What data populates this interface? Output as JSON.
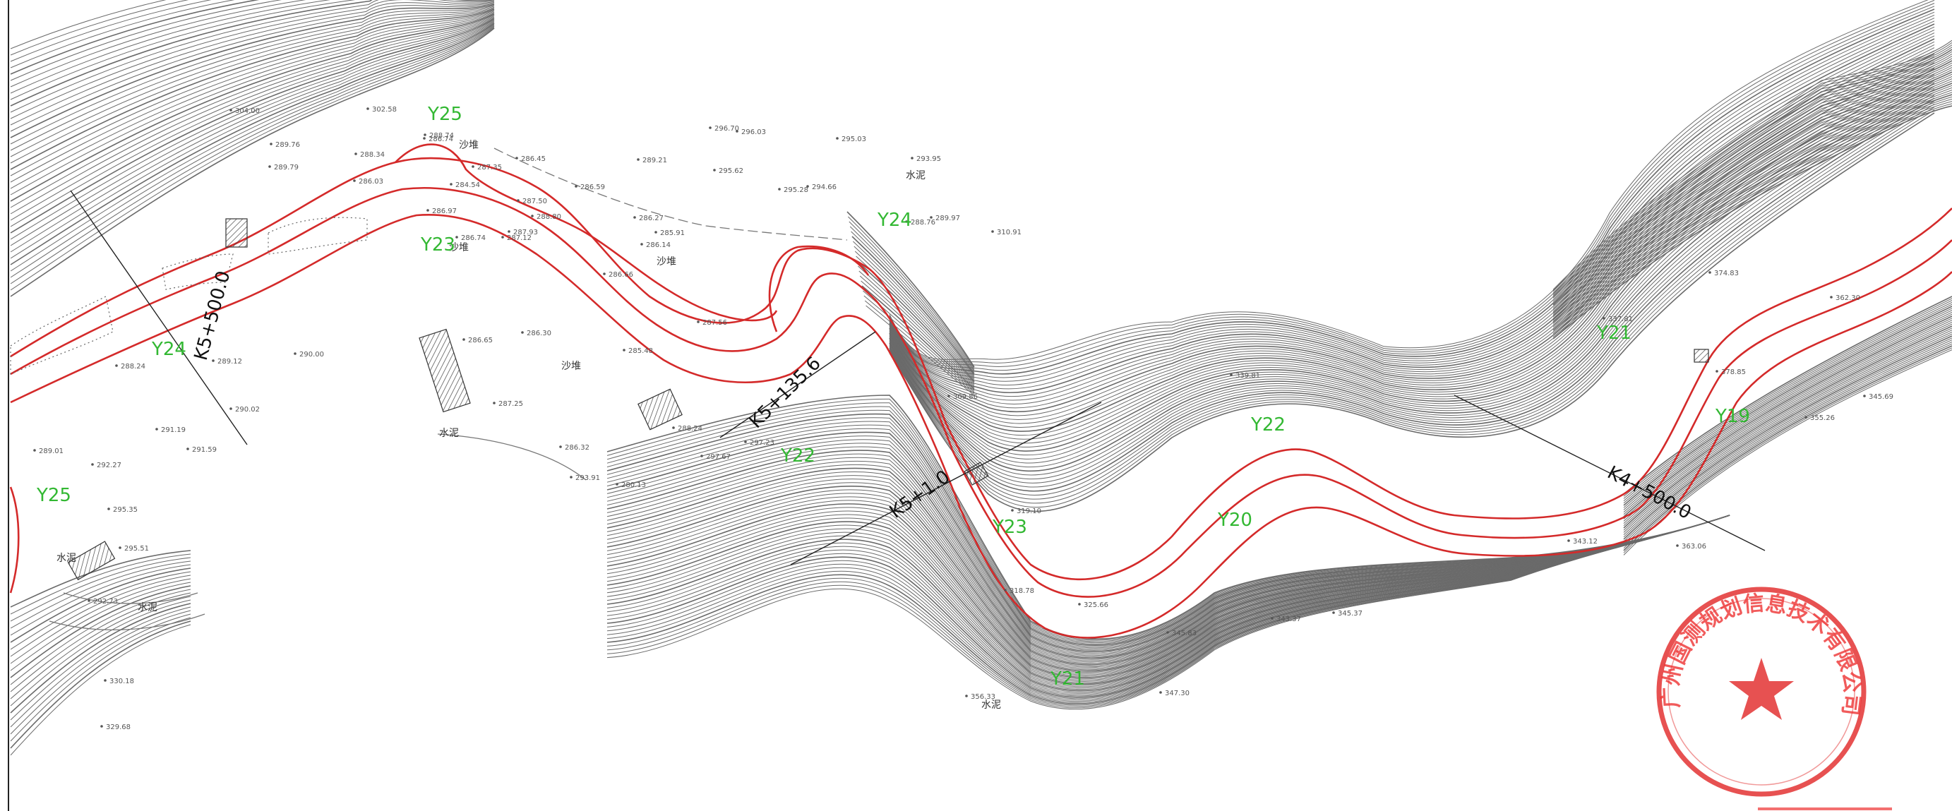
{
  "map": {
    "section_labels": [
      {
        "id": "Y25a",
        "text": "Y25"
      },
      {
        "id": "Y23",
        "text": "Y23"
      },
      {
        "id": "Y24a",
        "text": "Y24"
      },
      {
        "id": "Y25b",
        "text": "Y25"
      },
      {
        "id": "Y24b",
        "text": "Y24"
      },
      {
        "id": "Y22a",
        "text": "Y22"
      },
      {
        "id": "Y22b",
        "text": "Y22"
      },
      {
        "id": "Y23b",
        "text": "Y23"
      },
      {
        "id": "Y20",
        "text": "Y20"
      },
      {
        "id": "Y21a",
        "text": "Y21"
      },
      {
        "id": "Y21b",
        "text": "Y21"
      },
      {
        "id": "Y19",
        "text": "Y19"
      }
    ],
    "chainages": [
      {
        "id": "k5500",
        "text": "K5+500.0"
      },
      {
        "id": "k51356",
        "text": "K5+135.6"
      },
      {
        "id": "k510",
        "text": "K5+1.0"
      },
      {
        "id": "k45000",
        "text": "K4+500.0"
      }
    ],
    "place_labels": [
      {
        "id": "sand1",
        "text": "沙堆"
      },
      {
        "id": "sand2",
        "text": "沙堆"
      },
      {
        "id": "sand3",
        "text": "沙堆"
      },
      {
        "id": "sand4",
        "text": "沙堆"
      },
      {
        "id": "cement1",
        "text": "水泥"
      },
      {
        "id": "cement2",
        "text": "水泥"
      },
      {
        "id": "cement3",
        "text": "水泥"
      },
      {
        "id": "cement4",
        "text": "水泥"
      },
      {
        "id": "cement5",
        "text": "水泥"
      }
    ],
    "elevations": [
      "304.00",
      "302.58",
      "288.74",
      "288.34",
      "289.79",
      "289.76",
      "286.74",
      "286.45",
      "287.35",
      "286.03",
      "284.54",
      "287.50",
      "286.97",
      "287.12",
      "286.74",
      "287.93",
      "288.80",
      "286.59",
      "296.70",
      "296.03",
      "295.03",
      "293.95",
      "295.62",
      "289.21",
      "295.28",
      "294.66",
      "286.14",
      "285.91",
      "286.27",
      "286.66",
      "287.56",
      "288.76",
      "289.97",
      "310.91",
      "285.48",
      "286.65",
      "286.30",
      "287.25",
      "290.00",
      "289.12",
      "290.02",
      "291.19",
      "291.59",
      "292.27",
      "289.01",
      "295.35",
      "295.51",
      "292.73",
      "288.24",
      "293.91",
      "286.32",
      "280.13",
      "297.67",
      "297.23",
      "288.24",
      "309.86",
      "319.10",
      "318.78",
      "325.66",
      "345.83",
      "343.37",
      "345.37",
      "363.06",
      "378.85",
      "374.83",
      "339.81",
      "347.30",
      "356.33",
      "329.68",
      "330.18",
      "337.81",
      "362.30",
      "343.12",
      "345.69",
      "355.26"
    ],
    "stamp": {
      "text": "广州国测规划信息技术有限公司"
    },
    "colors": {
      "contour": "#555555",
      "boundary": "#d42a2a",
      "label": "#33b833",
      "stamp": "#e33333"
    }
  }
}
